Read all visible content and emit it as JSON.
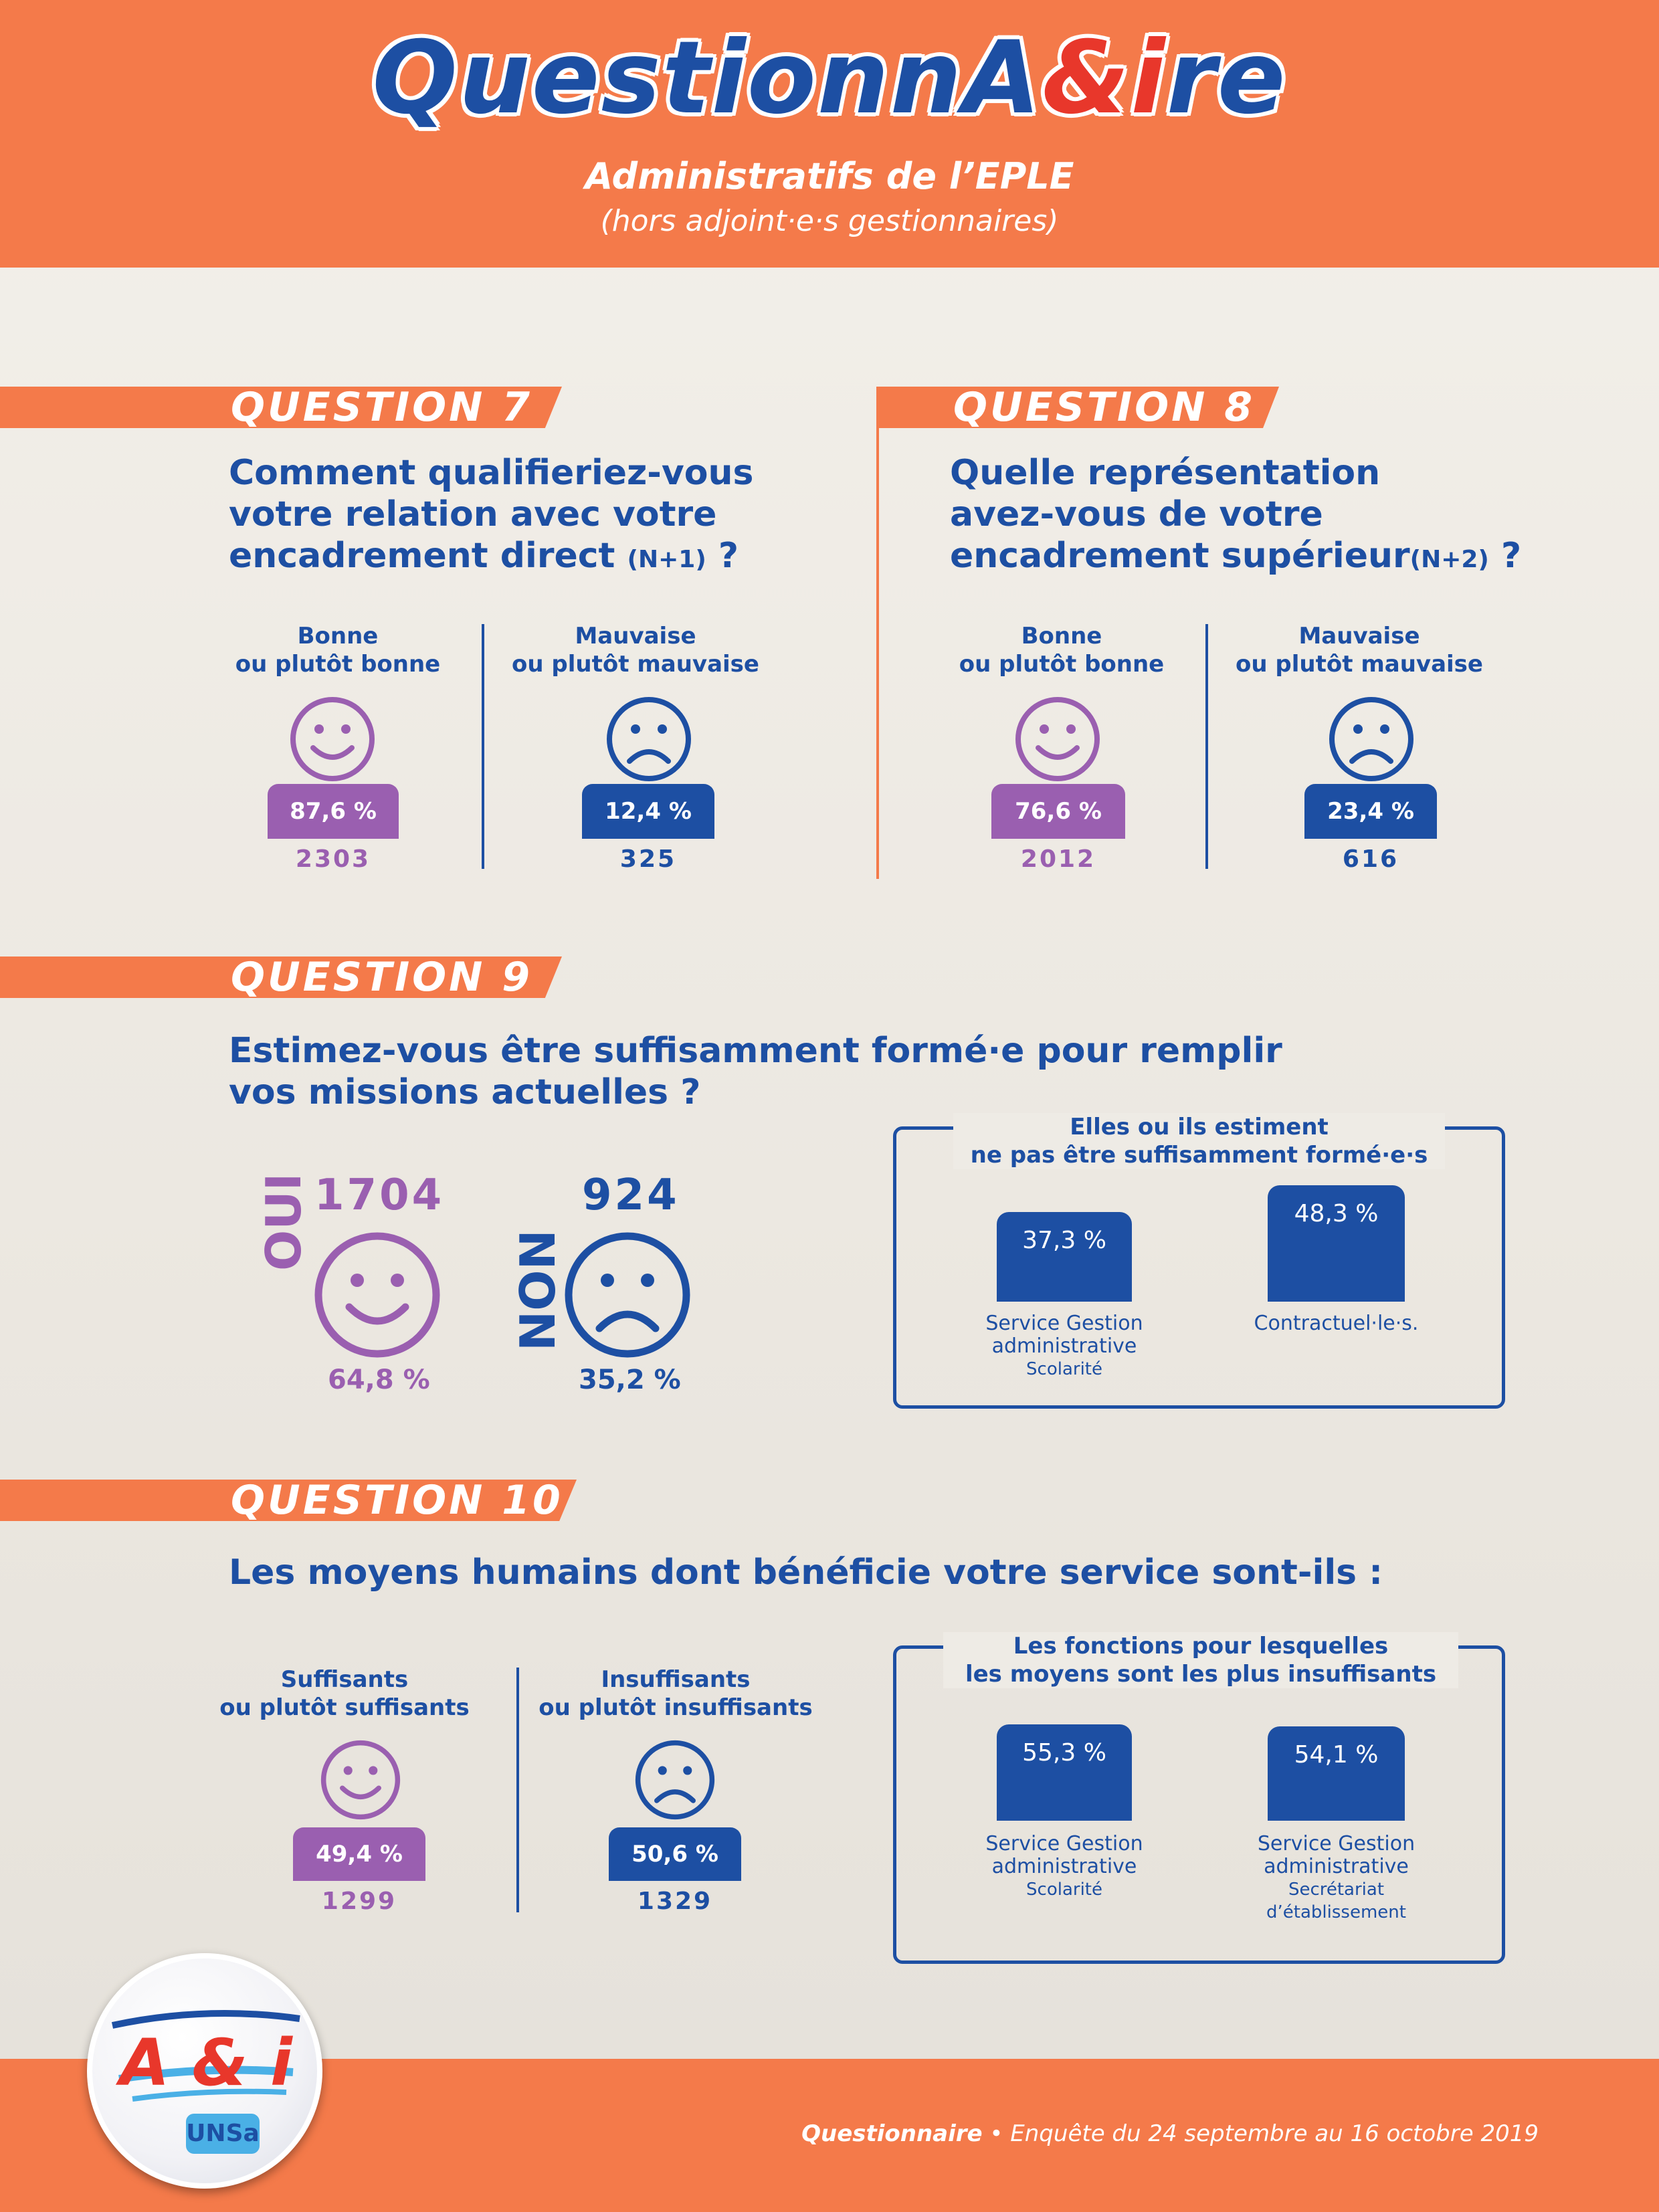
{
  "header": {
    "title_main": "QuestionnA",
    "title_accent": "&i",
    "title_end": "re",
    "subtitle": "Administratifs de l’EPLE",
    "subtitle2": "(hors adjoint·e·s gestionnaires)"
  },
  "q7": {
    "banner": "QUESTION 7",
    "text_line1": "Comment qualifieriez-vous",
    "text_line2": "votre relation avec votre",
    "text_line3": "encadrement direct",
    "text_suffix_small": "(N+1)",
    "text_suffix": " ?",
    "good_line1": "Bonne",
    "good_line2": "ou plutôt bonne",
    "good_pct": "87,6 %",
    "good_count": "2303",
    "bad_line1": "Mauvaise",
    "bad_line2": "ou plutôt mauvaise",
    "bad_pct": "12,4 %",
    "bad_count": "325"
  },
  "q8": {
    "banner": "QUESTION 8",
    "text_line1": "Quelle représentation",
    "text_line2": "avez-vous de votre",
    "text_line3": "encadrement supérieur",
    "text_suffix_small": "(N+2)",
    "text_suffix": " ?",
    "good_line1": "Bonne",
    "good_line2": "ou plutôt bonne",
    "good_pct": "76,6 %",
    "good_count": "2012",
    "bad_line1": "Mauvaise",
    "bad_line2": "ou plutôt mauvaise",
    "bad_pct": "23,4 %",
    "bad_count": "616"
  },
  "q9": {
    "banner": "QUESTION 9",
    "text_line1": "Estimez-vous être suffisamment formé·e pour remplir",
    "text_line2": "vos missions actuelles ?",
    "yes_label": "OUI",
    "yes_count": "1704",
    "yes_pct": "64,8 %",
    "no_label": "NON",
    "no_count": "924",
    "no_pct": "35,2 %",
    "frame_title1": "Elles ou ils estiment",
    "frame_title2": "ne pas être suffisamment formé·e·s",
    "bars": [
      {
        "pct": "37,3 %",
        "value": 37.3,
        "label1": "Service Gestion",
        "label2": "administrative",
        "label3": "Scolarité"
      },
      {
        "pct": "48,3 %",
        "value": 48.3,
        "label1": "Contractuel·le·s.",
        "label2": "",
        "label3": ""
      }
    ]
  },
  "q10": {
    "banner": "QUESTION 10",
    "text_line1": "Les moyens humains dont bénéficie votre service sont-ils :",
    "good_line1": "Suffisants",
    "good_line2": "ou plutôt suffisants",
    "good_pct": "49,4 %",
    "good_count": "1299",
    "bad_line1": "Insuffisants",
    "bad_line2": "ou plutôt insuffisants",
    "bad_pct": "50,6 %",
    "bad_count": "1329",
    "frame_title1": "Les fonctions pour lesquelles",
    "frame_title2": "les moyens sont les plus insuffisants",
    "bars": [
      {
        "pct": "55,3 %",
        "value": 55.3,
        "label1": "Service Gestion",
        "label2": "administrative",
        "label3": "Scolarité",
        "label4": ""
      },
      {
        "pct": "54,1 %",
        "value": 54.1,
        "label1": "Service Gestion",
        "label2": "administrative",
        "label3": "Secrétariat",
        "label4": "d’établissement"
      }
    ]
  },
  "logo": {
    "text": "A & i",
    "sub": "UNSa"
  },
  "footer": {
    "bold": "Questionnaire",
    "rest": " • Enquête du 24 septembre au 16 octobre 2019"
  },
  "colors": {
    "orange": "#f47a4a",
    "blue": "#1d4fa3",
    "purple": "#9a5fb0"
  }
}
